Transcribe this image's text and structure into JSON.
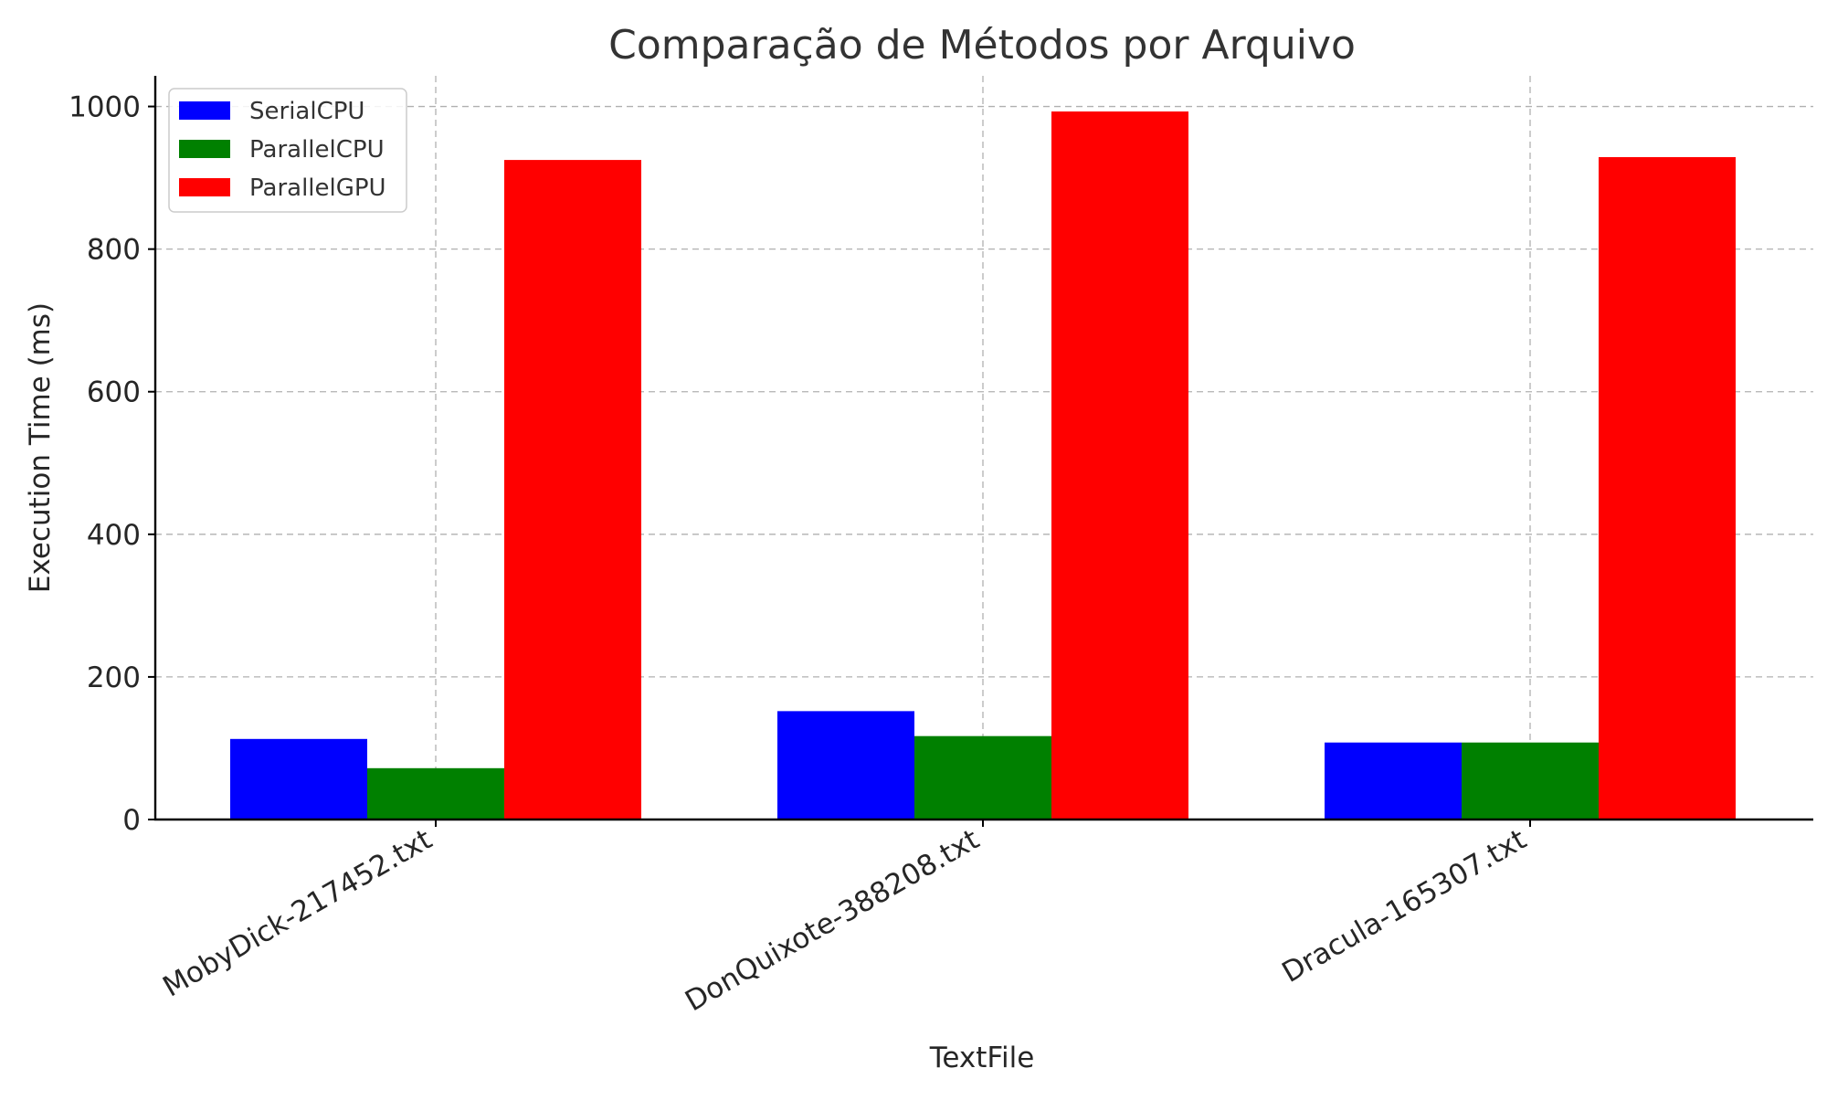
{
  "chart_data": {
    "type": "bar",
    "title": "Comparação de Métodos por Arquivo",
    "xlabel": "TextFile",
    "ylabel": "Execution Time (ms)",
    "categories": [
      "MobyDick-217452.txt",
      "DonQuixote-388208.txt",
      "Dracula-165307.txt"
    ],
    "series": [
      {
        "name": "SerialCPU",
        "color": "#0000ff",
        "values": [
          113,
          152,
          108
        ]
      },
      {
        "name": "ParallelCPU",
        "color": "#008000",
        "values": [
          72,
          117,
          108
        ]
      },
      {
        "name": "ParallelGPU",
        "color": "#ff0000",
        "values": [
          925,
          993,
          929
        ]
      }
    ],
    "ylim": [
      0,
      1043
    ],
    "yticks": [
      0,
      200,
      400,
      600,
      800,
      1000
    ],
    "grid": true,
    "legend_position": "top-left"
  }
}
